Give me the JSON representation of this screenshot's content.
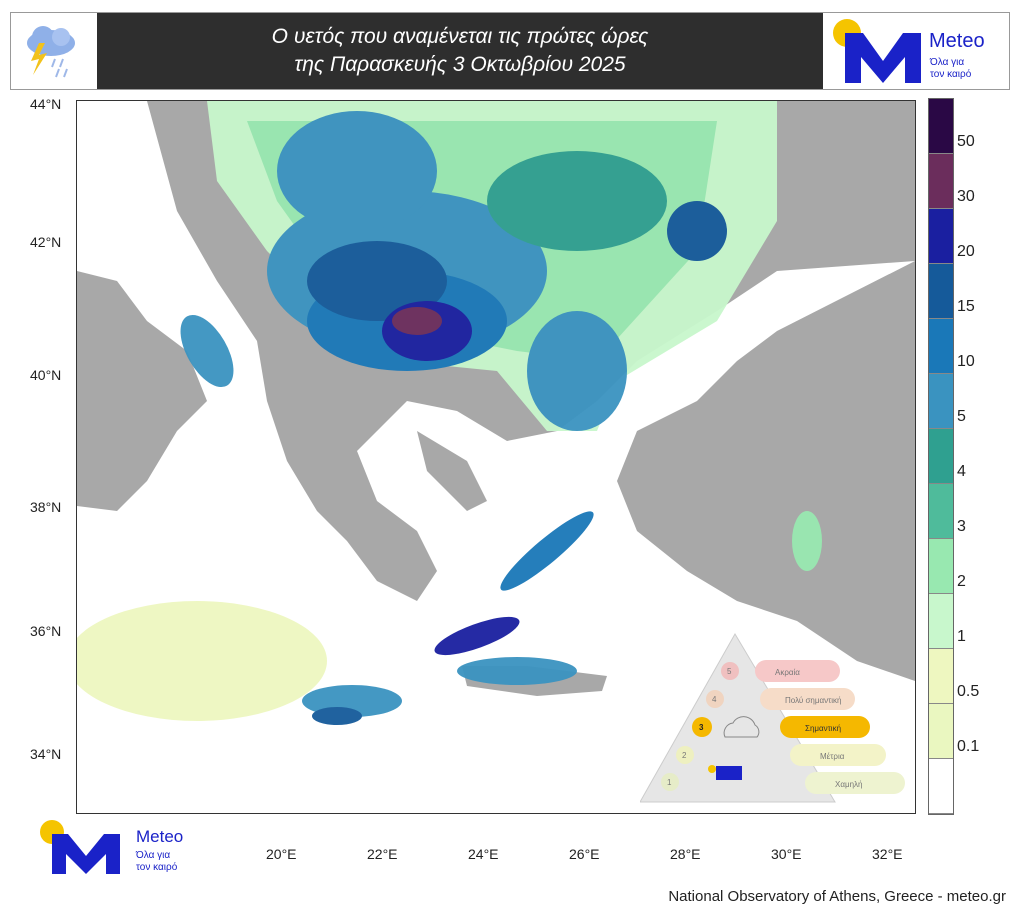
{
  "header": {
    "title_line1": "Ο υετός που αναμένεται τις πρώτες ώρες",
    "title_line2": "της Παρασκευής 3 Οκτωβρίου 2025",
    "icon": "thunderstorm-rain-icon"
  },
  "logo": {
    "name": "Meteo",
    "tagline1": "Όλα για",
    "tagline2": "τον καιρό"
  },
  "map": {
    "lat_labels": [
      "44°N",
      "42°N",
      "40°N",
      "38°N",
      "36°N",
      "34°N"
    ],
    "lon_labels": [
      "20°E",
      "22°E",
      "24°E",
      "26°E",
      "28°E",
      "30°E",
      "32°E"
    ]
  },
  "legend": {
    "labels": [
      "50",
      "30",
      "20",
      "15",
      "10",
      "5",
      "4",
      "3",
      "2",
      "1",
      "0.5",
      "0.1"
    ],
    "colors": [
      "#2a0845",
      "#6b2d5c",
      "#1a1fa0",
      "#155a9a",
      "#1a78b8",
      "#3a93c0",
      "#2fa090",
      "#4fbb9b",
      "#98e8b0",
      "#c8f7cc",
      "#eef7c0",
      "#eaf7c0",
      "#ffffff"
    ]
  },
  "warning_scale": {
    "levels": [
      "5",
      "4",
      "3",
      "2",
      "1"
    ],
    "labels": [
      "Ακραία",
      "Πολύ σημαντική",
      "Σημαντική",
      "Μέτρια",
      "Χαμηλή"
    ],
    "active_level": 3
  },
  "credit": "National Observatory of Athens, Greece - meteo.gr"
}
